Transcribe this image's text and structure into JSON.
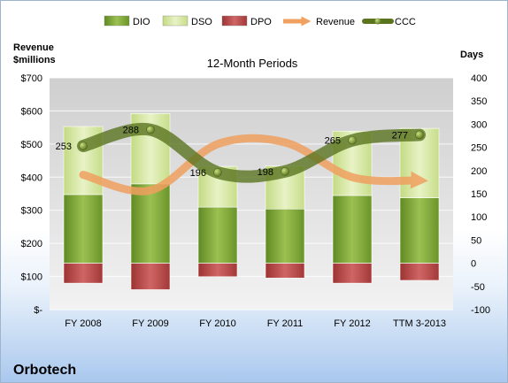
{
  "chart_data": {
    "type": "bar",
    "title": "12-Month Periods",
    "company": "Orbotech",
    "left_axis_title": [
      "Revenue",
      "$millions"
    ],
    "right_axis_title": "Days",
    "categories": [
      "FY 2008",
      "FY 2009",
      "FY 2010",
      "FY 2011",
      "FY 2012",
      "TTM 3-2013"
    ],
    "left_axis": {
      "min": 0,
      "max": 700,
      "step": 100,
      "tick_labels": [
        "$-",
        "$100",
        "$200",
        "$300",
        "$400",
        "$500",
        "$600",
        "$700"
      ]
    },
    "right_axis": {
      "min": -100,
      "max": 400,
      "step": 50,
      "tick_labels": [
        "-100",
        "-50",
        "0",
        "50",
        "100",
        "150",
        "200",
        "250",
        "300",
        "350",
        "400"
      ]
    },
    "series": [
      {
        "name": "DIO",
        "kind": "bar",
        "axis": "right",
        "color": "#7ea33a",
        "values": [
          148,
          171,
          121,
          117,
          146,
          141
        ]
      },
      {
        "name": "DSO",
        "kind": "bar",
        "axis": "right",
        "color": "#d6e7a8",
        "values": [
          147,
          152,
          88,
          93,
          139,
          150
        ]
      },
      {
        "name": "DPO",
        "kind": "bar",
        "axis": "right",
        "color": "#b84a4a",
        "values": [
          -43,
          -57,
          -29,
          -32,
          -43,
          -37
        ]
      },
      {
        "name": "Revenue",
        "kind": "line",
        "axis": "left",
        "color": "#f0a060",
        "values": [
          407,
          360,
          500,
          505,
          400,
          390
        ]
      },
      {
        "name": "CCC",
        "kind": "line",
        "axis": "right",
        "color": "#5a7420",
        "values": [
          253,
          288,
          196,
          198,
          265,
          277
        ],
        "labels": [
          "253",
          "288",
          "196",
          "198",
          "265",
          "277"
        ]
      }
    ],
    "legend_position": "top",
    "grid": true
  }
}
